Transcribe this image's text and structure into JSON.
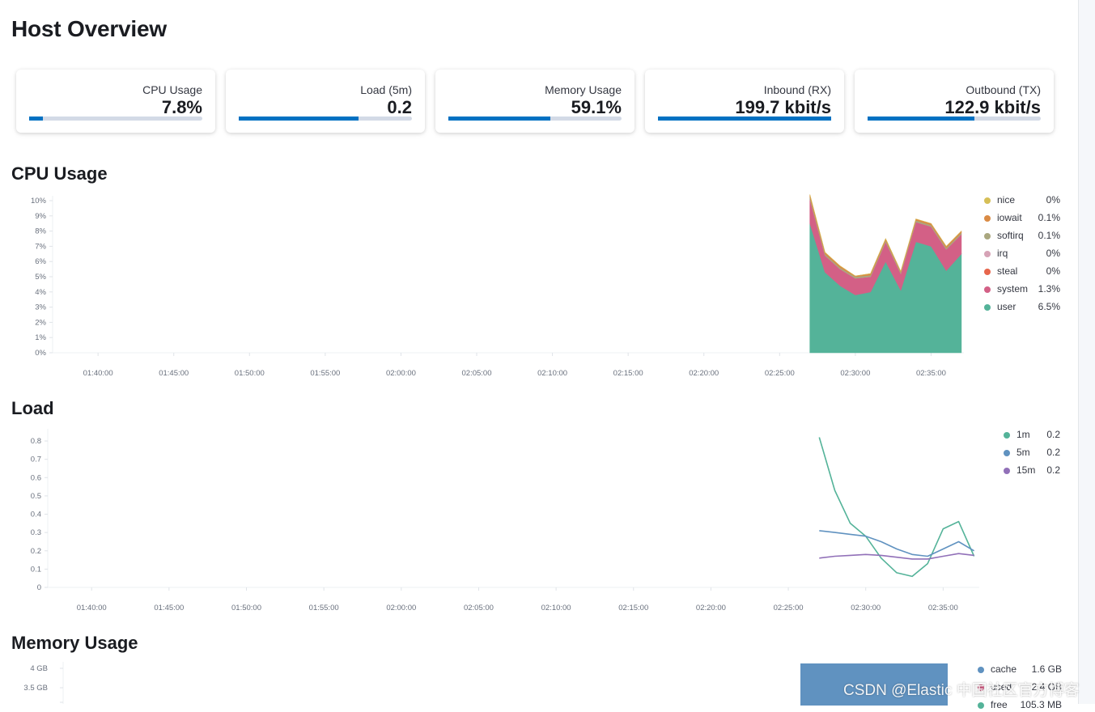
{
  "page": {
    "title": "Host Overview"
  },
  "kpis": [
    {
      "label": "CPU Usage",
      "value": "7.8%",
      "progress": 0.078
    },
    {
      "label": "Load (5m)",
      "value": "0.2",
      "progress": 0.69
    },
    {
      "label": "Memory Usage",
      "value": "59.1%",
      "progress": 0.591
    },
    {
      "label": "Inbound (RX)",
      "value": "199.7 kbit/s",
      "progress": 1.0
    },
    {
      "label": "Outbound (TX)",
      "value": "122.9 kbit/s",
      "progress": 0.615
    }
  ],
  "sections": {
    "cpu": "CPU Usage",
    "load": "Load",
    "memory": "Memory Usage"
  },
  "colors": {
    "user": "#54b399",
    "system": "#d36086",
    "steal": "#e7664c",
    "irq": "#d6a3b6",
    "softirq": "#aaa77f",
    "iowait": "#da8b45",
    "nice": "#d6bf57",
    "load1m": "#54b399",
    "load5m": "#6092c0",
    "load15m": "#9170b8",
    "cache": "#6092c0",
    "used": "#d36086",
    "free": "#54b399",
    "kpi_fill": "#0071c2"
  },
  "legends": {
    "cpu": [
      {
        "name": "nice",
        "value": "0%",
        "color_key": "nice"
      },
      {
        "name": "iowait",
        "value": "0.1%",
        "color_key": "iowait"
      },
      {
        "name": "softirq",
        "value": "0.1%",
        "color_key": "softirq"
      },
      {
        "name": "irq",
        "value": "0%",
        "color_key": "irq"
      },
      {
        "name": "steal",
        "value": "0%",
        "color_key": "steal"
      },
      {
        "name": "system",
        "value": "1.3%",
        "color_key": "system"
      },
      {
        "name": "user",
        "value": "6.5%",
        "color_key": "user"
      }
    ],
    "load": [
      {
        "name": "1m",
        "value": "0.2",
        "color_key": "load1m"
      },
      {
        "name": "5m",
        "value": "0.2",
        "color_key": "load5m"
      },
      {
        "name": "15m",
        "value": "0.2",
        "color_key": "load15m"
      }
    ],
    "memory": [
      {
        "name": "cache",
        "value": "1.6 GB",
        "color_key": "cache"
      },
      {
        "name": "used",
        "value": "2.4 GB",
        "color_key": "used"
      },
      {
        "name": "free",
        "value": "105.3 MB",
        "color_key": "free"
      }
    ]
  },
  "watermark": "CSDN @Elastic 中国社区官方博客",
  "chart_data": [
    {
      "type": "area",
      "title": "CPU Usage",
      "x_ticks": [
        "01:40:00",
        "01:45:00",
        "01:50:00",
        "01:55:00",
        "02:00:00",
        "02:05:00",
        "02:10:00",
        "02:15:00",
        "02:20:00",
        "02:25:00",
        "02:30:00",
        "02:35:00"
      ],
      "y_ticks": [
        "0%",
        "1%",
        "2%",
        "3%",
        "4%",
        "5%",
        "6%",
        "7%",
        "8%",
        "9%",
        "10%"
      ],
      "xlim": [
        "01:37:00",
        "02:37:10"
      ],
      "ylim": [
        0,
        10
      ],
      "x": [
        "02:27:00",
        "02:28:00",
        "02:29:00",
        "02:30:00",
        "02:31:00",
        "02:32:00",
        "02:33:00",
        "02:34:00",
        "02:35:00",
        "02:36:00",
        "02:37:00"
      ],
      "series": [
        {
          "name": "user",
          "color_key": "user",
          "values": [
            8.5,
            5.3,
            4.4,
            3.8,
            4.0,
            6.0,
            4.1,
            7.3,
            7.0,
            5.4,
            6.5
          ]
        },
        {
          "name": "system",
          "color_key": "system",
          "values": [
            1.6,
            1.1,
            1.1,
            1.1,
            1.0,
            1.3,
            1.1,
            1.3,
            1.3,
            1.4,
            1.3
          ]
        },
        {
          "name": "steal",
          "color_key": "steal",
          "values": [
            0,
            0,
            0,
            0,
            0,
            0,
            0,
            0,
            0,
            0,
            0
          ]
        },
        {
          "name": "irq",
          "color_key": "irq",
          "values": [
            0,
            0,
            0,
            0,
            0,
            0,
            0,
            0,
            0,
            0,
            0
          ]
        },
        {
          "name": "softirq",
          "color_key": "softirq",
          "values": [
            0.15,
            0.1,
            0.1,
            0.1,
            0.1,
            0.1,
            0.1,
            0.1,
            0.1,
            0.1,
            0.1
          ]
        },
        {
          "name": "iowait",
          "color_key": "iowait",
          "values": [
            0.15,
            0.1,
            0.1,
            0.05,
            0.1,
            0.1,
            0.05,
            0.1,
            0.1,
            0.1,
            0.1
          ]
        },
        {
          "name": "nice",
          "color_key": "nice",
          "values": [
            0,
            0,
            0,
            0,
            0,
            0,
            0,
            0,
            0,
            0,
            0
          ]
        }
      ]
    },
    {
      "type": "line",
      "title": "Load",
      "x_ticks": [
        "01:40:00",
        "01:45:00",
        "01:50:00",
        "01:55:00",
        "02:00:00",
        "02:05:00",
        "02:10:00",
        "02:15:00",
        "02:20:00",
        "02:25:00",
        "02:30:00",
        "02:35:00"
      ],
      "y_ticks": [
        "0",
        "0.1",
        "0.2",
        "0.3",
        "0.4",
        "0.5",
        "0.6",
        "0.7",
        "0.8"
      ],
      "xlim": [
        "01:37:10",
        "02:37:20"
      ],
      "ylim": [
        0,
        0.84
      ],
      "x": [
        "02:27:00",
        "02:28:00",
        "02:29:00",
        "02:30:00",
        "02:31:00",
        "02:32:00",
        "02:33:00",
        "02:34:00",
        "02:35:00",
        "02:36:00",
        "02:37:00"
      ],
      "series": [
        {
          "name": "1m",
          "color_key": "load1m",
          "values": [
            0.82,
            0.53,
            0.35,
            0.28,
            0.16,
            0.08,
            0.06,
            0.13,
            0.32,
            0.36,
            0.17
          ]
        },
        {
          "name": "5m",
          "color_key": "load5m",
          "values": [
            0.31,
            0.3,
            0.29,
            0.28,
            0.25,
            0.21,
            0.18,
            0.17,
            0.21,
            0.25,
            0.2
          ]
        },
        {
          "name": "15m",
          "color_key": "load15m",
          "values": [
            0.16,
            0.17,
            0.175,
            0.18,
            0.175,
            0.165,
            0.155,
            0.155,
            0.17,
            0.185,
            0.175
          ]
        }
      ]
    },
    {
      "type": "bar",
      "title": "Memory Usage",
      "y_ticks": [
        "4 GB",
        "3.5 GB"
      ],
      "series": [
        {
          "name": "cache",
          "color_key": "cache",
          "value": "1.6 GB"
        },
        {
          "name": "used",
          "color_key": "used",
          "value": "2.4 GB"
        },
        {
          "name": "free",
          "color_key": "free",
          "value": "105.3 MB"
        }
      ]
    }
  ]
}
